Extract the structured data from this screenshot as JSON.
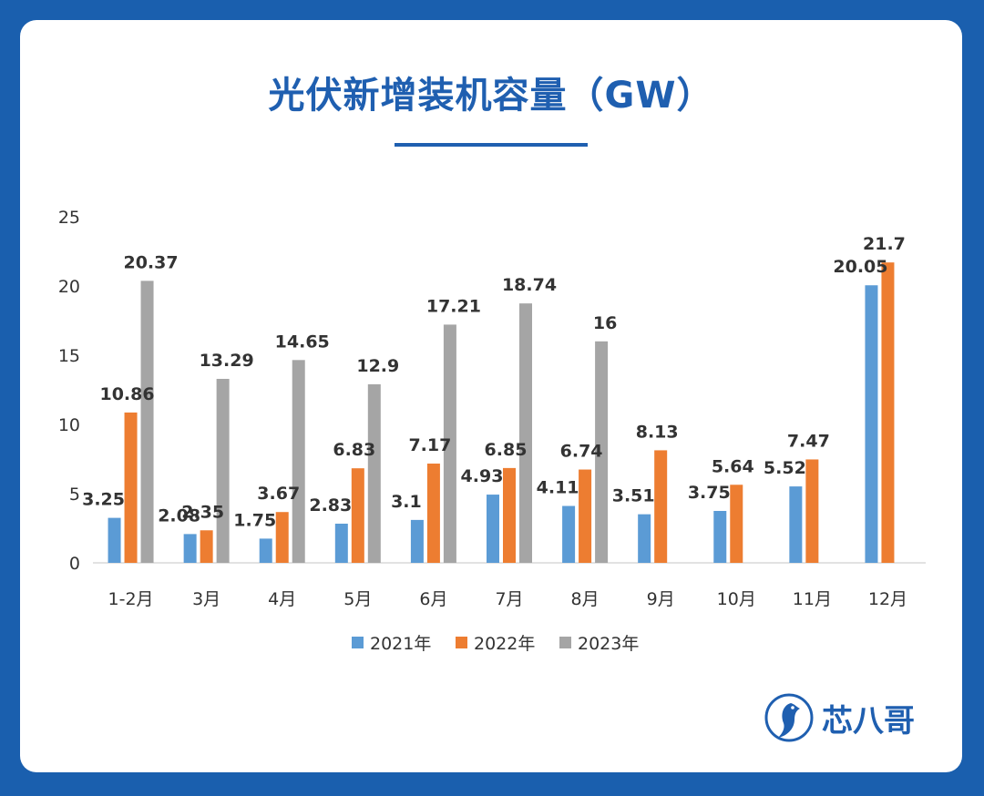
{
  "title": "光伏新增装机容量（GW）",
  "brand": {
    "name": "芯八哥"
  },
  "colors": {
    "2021年": "#5b9bd5",
    "2022年": "#ed7d31",
    "2023年": "#a5a5a5"
  },
  "chart_data": {
    "type": "bar",
    "title": "光伏新增装机容量（GW）",
    "categories": [
      "1-2月",
      "3月",
      "4月",
      "5月",
      "6月",
      "7月",
      "8月",
      "9月",
      "10月",
      "11月",
      "12月"
    ],
    "series": [
      {
        "name": "2021年",
        "values": [
          3.25,
          2.08,
          1.75,
          2.83,
          3.1,
          4.93,
          4.11,
          3.51,
          3.75,
          5.52,
          20.05
        ]
      },
      {
        "name": "2022年",
        "values": [
          10.86,
          2.35,
          3.67,
          6.83,
          7.17,
          6.85,
          6.74,
          8.13,
          5.64,
          7.47,
          21.7
        ]
      },
      {
        "name": "2023年",
        "values": [
          20.37,
          13.29,
          14.65,
          12.9,
          17.21,
          18.74,
          16,
          null,
          null,
          null,
          null
        ]
      }
    ],
    "value_labels": [
      [
        "3.25",
        "2.08",
        "1.75",
        "2.83",
        "3.1",
        "4.93",
        "4.11",
        "3.51",
        "3.75",
        "5.52",
        "20.05"
      ],
      [
        "10.86",
        "2.35",
        "3.67",
        "6.83",
        "7.17",
        "6.85",
        "6.74",
        "8.13",
        "5.64",
        "7.47",
        "21.7"
      ],
      [
        "20.37",
        "13.29",
        "14.65",
        "12.9",
        "17.21",
        "18.74",
        "16",
        "",
        "",
        "",
        ""
      ]
    ],
    "yticks": [
      "0",
      "5",
      "10",
      "15",
      "20",
      "25"
    ],
    "ylim": [
      0,
      25
    ],
    "grid": false,
    "legend": "bottom"
  }
}
